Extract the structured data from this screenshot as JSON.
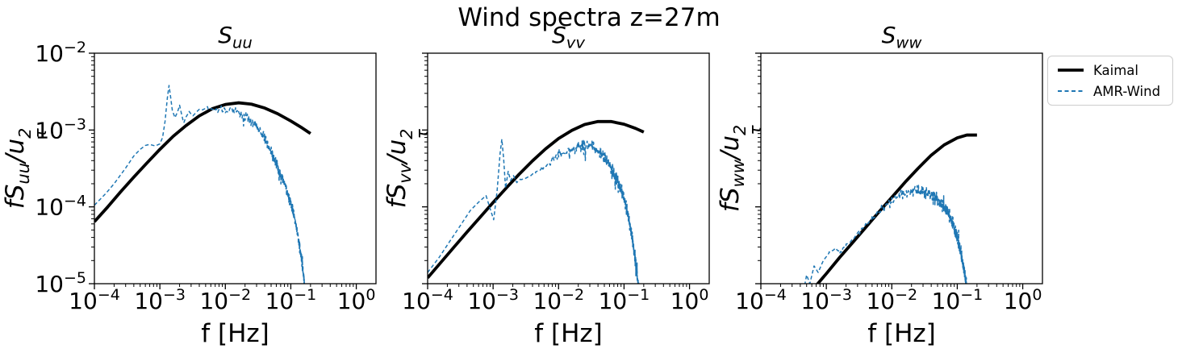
{
  "figure": {
    "title": "Wind spectra z=27m",
    "background": "#ffffff"
  },
  "legend": {
    "border_color": "#cccccc",
    "entries": [
      {
        "label": "Kaimal",
        "color": "#000000",
        "style": "solid"
      },
      {
        "label": "AMR-Wind",
        "color": "#1f77b4",
        "style": "dashed"
      }
    ]
  },
  "chart_data": [
    {
      "type": "line",
      "title": {
        "letter": "S",
        "sub": "uu",
        "display": "S_uu"
      },
      "xlabel": "f [Hz]",
      "ylabel": {
        "pre": "fS",
        "sub": "uu",
        "mid": "/u",
        "sup": "2",
        "tau": "τ",
        "display": "fS_uu/u_tau^2"
      },
      "xscale": "log",
      "yscale": "log",
      "xlim": [
        0.0001,
        2
      ],
      "ylim": [
        1e-05,
        0.01
      ],
      "x_tick_exponents": [
        -4,
        -3,
        -2,
        -1,
        0
      ],
      "y_tick_exponents": [
        -2,
        -3,
        -4,
        -5
      ],
      "y_tick_labels_visible": true,
      "series": [
        {
          "name": "Kaimal",
          "color": "#000000",
          "style": "solid",
          "width": 3.8,
          "points": [
            [
              0.0001,
              6.4e-05
            ],
            [
              0.00016,
              0.0001
            ],
            [
              0.00025,
              0.000156
            ],
            [
              0.0004,
              0.000244
            ],
            [
              0.00063,
              0.00037
            ],
            [
              0.001,
              0.00056
            ],
            [
              0.0016,
              0.00083
            ],
            [
              0.0025,
              0.00114
            ],
            [
              0.004,
              0.00153
            ],
            [
              0.0063,
              0.00189
            ],
            [
              0.01,
              0.00215
            ],
            [
              0.016,
              0.00226
            ],
            [
              0.025,
              0.00217
            ],
            [
              0.04,
              0.00193
            ],
            [
              0.063,
              0.00163
            ],
            [
              0.1,
              0.00131
            ],
            [
              0.15,
              0.00106
            ],
            [
              0.2,
              0.0009
            ]
          ]
        },
        {
          "name": "AMR-Wind",
          "color": "#1f77b4",
          "style": "dashed",
          "width": 1.5,
          "noise": {
            "seed": 3,
            "f_start": 0.0017,
            "f_full": 0.022,
            "sigma_log": 0.062
          },
          "points": [
            [
              0.0001,
              0.000105
            ],
            [
              0.00015,
              0.00015
            ],
            [
              0.0002,
              0.0002
            ],
            [
              0.0003,
              0.00032
            ],
            [
              0.0004,
              0.00046
            ],
            [
              0.0005,
              0.00056
            ],
            [
              0.0006,
              0.00063
            ],
            [
              0.0007,
              0.00065
            ],
            [
              0.00085,
              0.00062
            ],
            [
              0.001,
              0.00066
            ],
            [
              0.0011,
              0.0008
            ],
            [
              0.0012,
              0.0013
            ],
            [
              0.0013,
              0.0026
            ],
            [
              0.00138,
              0.0038
            ],
            [
              0.00145,
              0.0028
            ],
            [
              0.00155,
              0.0018
            ],
            [
              0.0017,
              0.00145
            ],
            [
              0.00185,
              0.0017
            ],
            [
              0.002,
              0.0021
            ],
            [
              0.00215,
              0.0016
            ],
            [
              0.0023,
              0.00125
            ],
            [
              0.0025,
              0.00145
            ],
            [
              0.0028,
              0.0017
            ],
            [
              0.0032,
              0.00155
            ],
            [
              0.0037,
              0.00175
            ],
            [
              0.0045,
              0.00185
            ],
            [
              0.0055,
              0.0019
            ],
            [
              0.007,
              0.0018
            ],
            [
              0.0085,
              0.00185
            ],
            [
              0.01,
              0.0018
            ],
            [
              0.012,
              0.00185
            ],
            [
              0.015,
              0.00175
            ],
            [
              0.018,
              0.0016
            ],
            [
              0.022,
              0.00145
            ],
            [
              0.027,
              0.00125
            ],
            [
              0.033,
              0.001
            ],
            [
              0.04,
              0.00078
            ],
            [
              0.05,
              0.00052
            ],
            [
              0.06,
              0.00036
            ],
            [
              0.07,
              0.00026
            ],
            [
              0.085,
              0.00017
            ],
            [
              0.1,
              0.00011
            ],
            [
              0.115,
              7e-05
            ],
            [
              0.13,
              4e-05
            ],
            [
              0.145,
              2.2e-05
            ],
            [
              0.155,
              1.35e-05
            ],
            [
              0.165,
              8e-06
            ],
            [
              0.175,
              4.5e-06
            ]
          ]
        }
      ]
    },
    {
      "type": "line",
      "title": {
        "letter": "S",
        "sub": "vv",
        "display": "S_vv"
      },
      "xlabel": "f [Hz]",
      "ylabel": {
        "pre": "fS",
        "sub": "vv",
        "mid": "/u",
        "sup": "2",
        "tau": "τ",
        "display": "fS_vv/u_tau^2"
      },
      "xscale": "log",
      "yscale": "log",
      "xlim": [
        0.0001,
        2
      ],
      "ylim": [
        1e-05,
        0.01
      ],
      "x_tick_exponents": [
        -4,
        -3,
        -2,
        -1,
        0
      ],
      "y_tick_exponents": [
        -2,
        -3,
        -4,
        -5
      ],
      "y_tick_labels_visible": false,
      "series": [
        {
          "name": "Kaimal",
          "color": "#000000",
          "style": "solid",
          "width": 3.8,
          "points": [
            [
              0.0001,
              1.19e-05
            ],
            [
              0.00016,
              1.9e-05
            ],
            [
              0.00025,
              2.96e-05
            ],
            [
              0.0004,
              4.7e-05
            ],
            [
              0.00063,
              7.3e-05
            ],
            [
              0.001,
              0.000114
            ],
            [
              0.0016,
              0.000177
            ],
            [
              0.0025,
              0.000266
            ],
            [
              0.004,
              0.000397
            ],
            [
              0.0063,
              0.000566
            ],
            [
              0.01,
              0.000775
            ],
            [
              0.016,
              0.00099
            ],
            [
              0.025,
              0.00118
            ],
            [
              0.04,
              0.00129
            ],
            [
              0.063,
              0.00129
            ],
            [
              0.1,
              0.00119
            ],
            [
              0.15,
              0.00105
            ],
            [
              0.2,
              0.00094
            ]
          ]
        },
        {
          "name": "AMR-Wind",
          "color": "#1f77b4",
          "style": "dashed",
          "width": 1.5,
          "noise": {
            "seed": 5,
            "f_start": 0.0016,
            "f_full": 0.022,
            "sigma_log": 0.075
          },
          "points": [
            [
              0.0001,
              1.4e-05
            ],
            [
              0.00015,
              2.2e-05
            ],
            [
              0.00022,
              3.6e-05
            ],
            [
              0.00032,
              5.8e-05
            ],
            [
              0.00045,
              9e-05
            ],
            [
              0.0006,
              0.000115
            ],
            [
              0.00078,
              0.00014
            ],
            [
              0.0009,
              9.5e-05
            ],
            [
              0.00102,
              6.8e-05
            ],
            [
              0.00115,
              0.00016
            ],
            [
              0.00128,
              0.0005
            ],
            [
              0.00136,
              0.00076
            ],
            [
              0.00145,
              0.00042
            ],
            [
              0.00155,
              0.000175
            ],
            [
              0.0017,
              0.00029
            ],
            [
              0.00185,
              0.00022
            ],
            [
              0.00205,
              0.000255
            ],
            [
              0.0023,
              0.00021
            ],
            [
              0.0026,
              0.00023
            ],
            [
              0.003,
              0.00023
            ],
            [
              0.0036,
              0.00025
            ],
            [
              0.0045,
              0.00028
            ],
            [
              0.0055,
              0.00032
            ],
            [
              0.007,
              0.00037
            ],
            [
              0.0085,
              0.00042
            ],
            [
              0.01,
              0.00046
            ],
            [
              0.0125,
              0.00052
            ],
            [
              0.0155,
              0.00057
            ],
            [
              0.019,
              0.0006
            ],
            [
              0.023,
              0.00063
            ],
            [
              0.028,
              0.00063
            ],
            [
              0.034,
              0.0006
            ],
            [
              0.04,
              0.00055
            ],
            [
              0.048,
              0.00047
            ],
            [
              0.056,
              0.00039
            ],
            [
              0.066,
              0.00031
            ],
            [
              0.078,
              0.00023
            ],
            [
              0.09,
              0.00017
            ],
            [
              0.105,
              0.00011
            ],
            [
              0.12,
              6.5e-05
            ],
            [
              0.135,
              3.6e-05
            ],
            [
              0.15,
              2e-05
            ],
            [
              0.16,
              1.2e-05
            ],
            [
              0.17,
              7e-06
            ],
            [
              0.18,
              4e-06
            ]
          ]
        }
      ]
    },
    {
      "type": "line",
      "title": {
        "letter": "S",
        "sub": "ww",
        "display": "S_ww"
      },
      "xlabel": "f [Hz]",
      "ylabel": {
        "pre": "fS",
        "sub": "ww",
        "mid": "/u",
        "sup": "2",
        "tau": "τ",
        "display": "fS_ww/u_tau^2"
      },
      "xscale": "log",
      "yscale": "log",
      "xlim": [
        0.0001,
        2
      ],
      "ylim": [
        1e-05,
        0.01
      ],
      "x_tick_exponents": [
        -4,
        -3,
        -2,
        -1,
        0
      ],
      "y_tick_exponents": [
        -2,
        -3,
        -4,
        -5
      ],
      "y_tick_labels_visible": false,
      "series": [
        {
          "name": "Kaimal",
          "color": "#000000",
          "style": "solid",
          "width": 3.8,
          "points": [
            [
              0.0005,
              6.8e-06
            ],
            [
              0.00074,
              1e-05
            ],
            [
              0.001,
              1.35e-05
            ],
            [
              0.0016,
              2.2e-05
            ],
            [
              0.0025,
              3.4e-05
            ],
            [
              0.004,
              5.4e-05
            ],
            [
              0.0063,
              8.5e-05
            ],
            [
              0.01,
              0.000133
            ],
            [
              0.016,
              0.00021
            ],
            [
              0.025,
              0.000315
            ],
            [
              0.04,
              0.00047
            ],
            [
              0.063,
              0.00064
            ],
            [
              0.1,
              0.00079
            ],
            [
              0.14,
              0.00086
            ],
            [
              0.2,
              0.00086
            ]
          ]
        },
        {
          "name": "AMR-Wind",
          "color": "#1f77b4",
          "style": "dashed",
          "width": 1.5,
          "noise": {
            "seed": 9,
            "f_start": 0.0008,
            "f_full": 0.025,
            "sigma_log": 0.075
          },
          "points": [
            [
              0.00045,
              8e-06
            ],
            [
              0.0005,
              1.3e-05
            ],
            [
              0.00056,
              1e-05
            ],
            [
              0.00065,
              1.7e-05
            ],
            [
              0.00075,
              1.4e-05
            ],
            [
              0.0009,
              2e-05
            ],
            [
              0.0011,
              2.5e-05
            ],
            [
              0.00135,
              2.9e-05
            ],
            [
              0.0016,
              2.5e-05
            ],
            [
              0.002,
              3.1e-05
            ],
            [
              0.0025,
              3.8e-05
            ],
            [
              0.0032,
              4.7e-05
            ],
            [
              0.004,
              5.8e-05
            ],
            [
              0.005,
              7e-05
            ],
            [
              0.0063,
              8.4e-05
            ],
            [
              0.008,
              0.0001
            ],
            [
              0.01,
              0.00012
            ],
            [
              0.013,
              0.00014
            ],
            [
              0.017,
              0.000152
            ],
            [
              0.022,
              0.00016
            ],
            [
              0.028,
              0.00016
            ],
            [
              0.035,
              0.00015
            ],
            [
              0.043,
              0.000138
            ],
            [
              0.052,
              0.00012
            ],
            [
              0.062,
              0.0001
            ],
            [
              0.072,
              8.5e-05
            ],
            [
              0.082,
              6.5e-05
            ],
            [
              0.092,
              5e-05
            ],
            [
              0.105,
              3.4e-05
            ],
            [
              0.12,
              2e-05
            ],
            [
              0.135,
              1.1e-05
            ],
            [
              0.145,
              7e-06
            ],
            [
              0.155,
              4e-06
            ]
          ]
        }
      ]
    }
  ]
}
